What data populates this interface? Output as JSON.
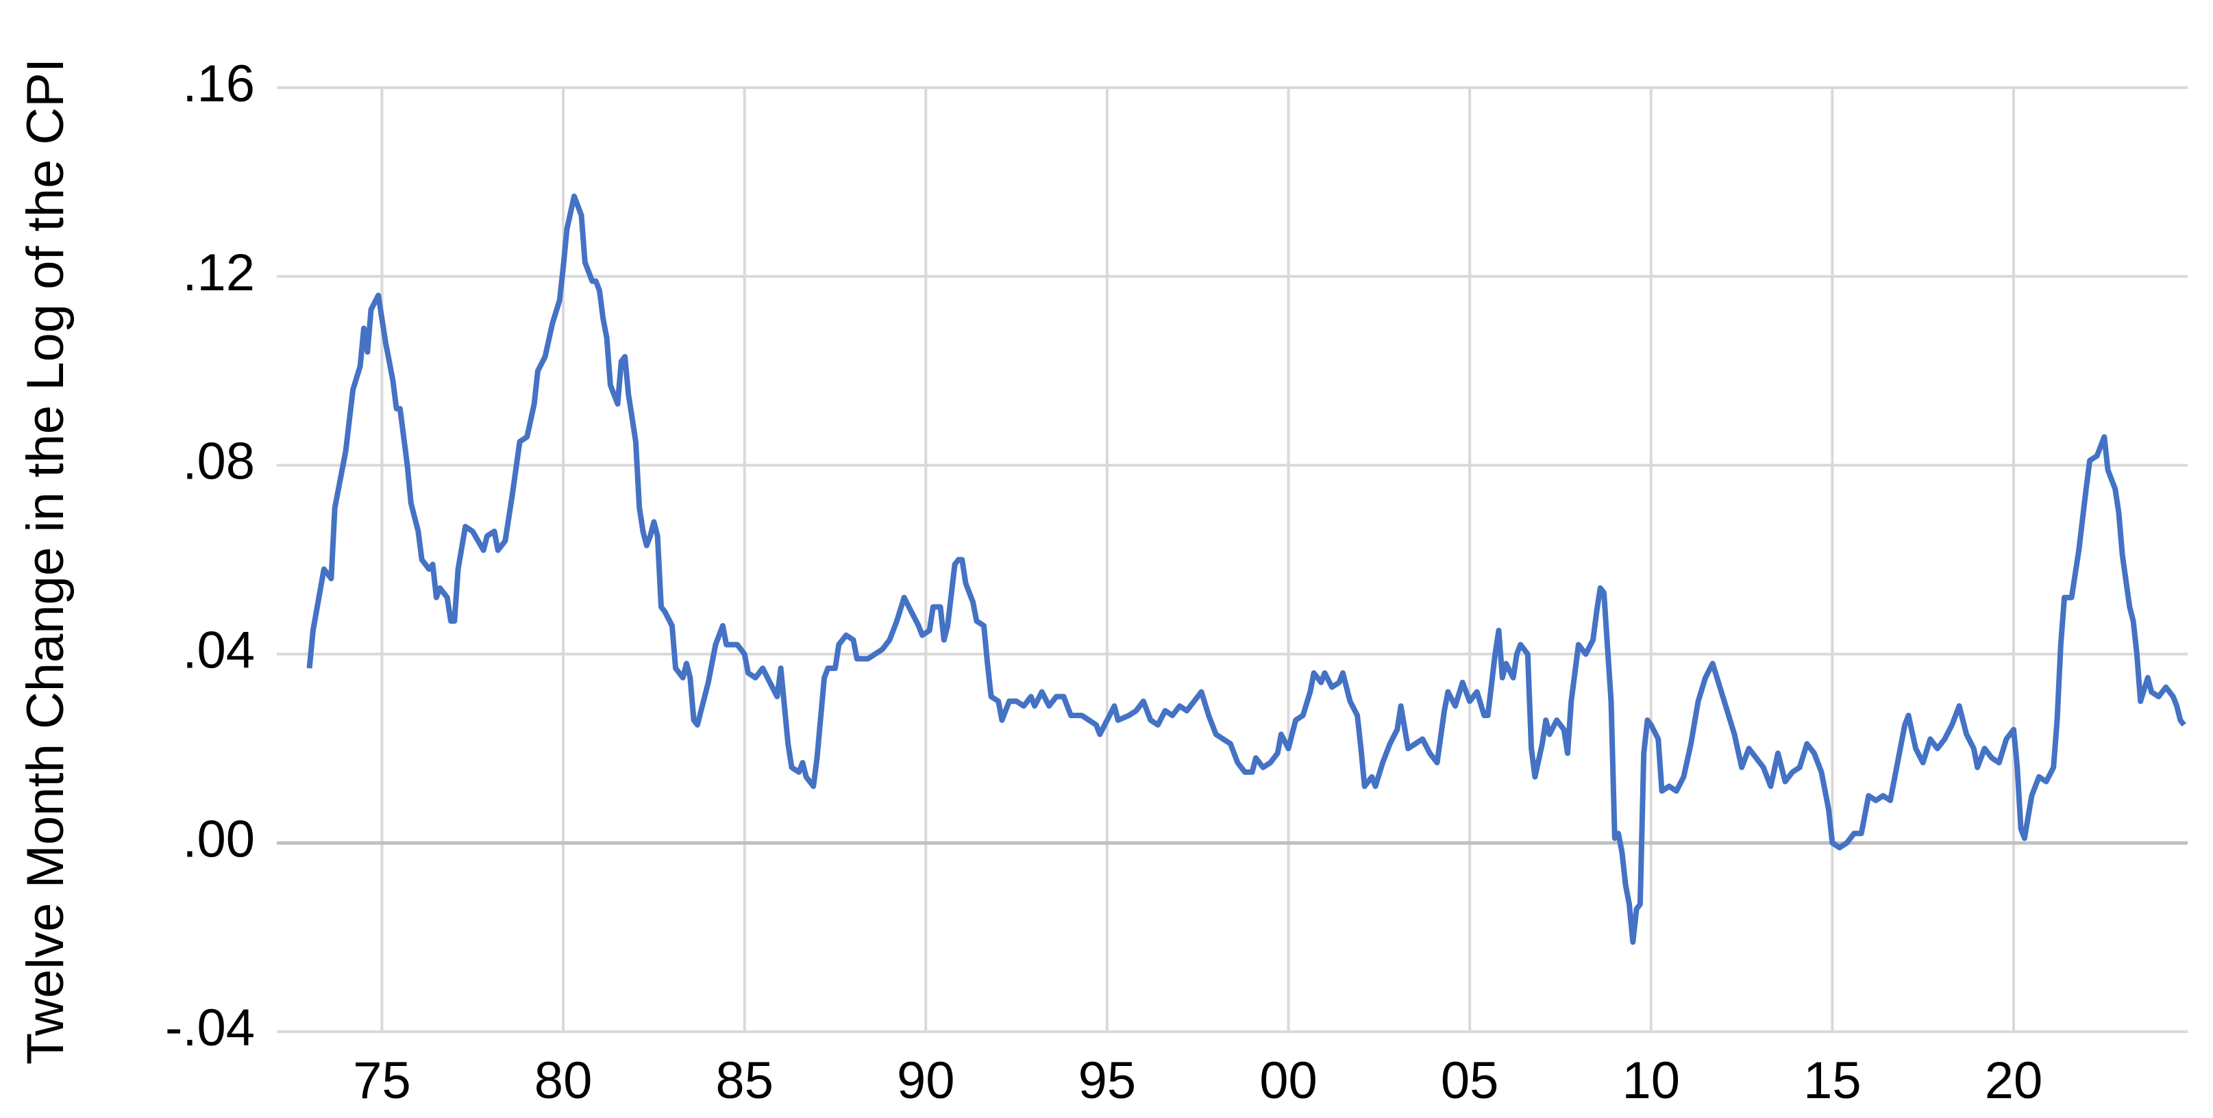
{
  "chart_data": {
    "type": "line",
    "y_label": "Twelve Month Change in the Log of the CPI",
    "color": "#4472c4",
    "grid": true,
    "xlim": [
      1972.1,
      2024.8
    ],
    "ylim": [
      -0.04,
      0.16
    ],
    "xticks": [
      {
        "value": 1975,
        "label": "75"
      },
      {
        "value": 1980,
        "label": "80"
      },
      {
        "value": 1985,
        "label": "85"
      },
      {
        "value": 1990,
        "label": "90"
      },
      {
        "value": 1995,
        "label": "95"
      },
      {
        "value": 2000,
        "label": "00"
      },
      {
        "value": 2005,
        "label": "05"
      },
      {
        "value": 2010,
        "label": "10"
      },
      {
        "value": 2015,
        "label": "15"
      },
      {
        "value": 2020,
        "label": "20"
      }
    ],
    "yticks": [
      {
        "value": -0.04,
        "label": "-.04"
      },
      {
        "value": 0,
        "label": ".00"
      },
      {
        "value": 0.04,
        "label": ".04"
      },
      {
        "value": 0.08,
        "label": ".08"
      },
      {
        "value": 0.12,
        "label": ".12"
      },
      {
        "value": 0.16,
        "label": ".16"
      }
    ],
    "x": [
      1973.0,
      1973.1,
      1973.4,
      1973.6,
      1973.7,
      1974.0,
      1974.2,
      1974.4,
      1974.5,
      1974.6,
      1974.7,
      1974.9,
      1975.1,
      1975.3,
      1975.4,
      1975.5,
      1975.7,
      1975.8,
      1976.0,
      1976.1,
      1976.3,
      1976.4,
      1976.5,
      1976.6,
      1976.8,
      1976.9,
      1977.0,
      1977.1,
      1977.3,
      1977.5,
      1977.8,
      1977.9,
      1978.1,
      1978.2,
      1978.4,
      1978.6,
      1978.8,
      1979.0,
      1979.2,
      1979.3,
      1979.5,
      1979.7,
      1979.9,
      1980.0,
      1980.1,
      1980.3,
      1980.5,
      1980.6,
      1980.8,
      1980.9,
      1981.0,
      1981.1,
      1981.2,
      1981.3,
      1981.5,
      1981.6,
      1981.7,
      1981.8,
      1982.0,
      1982.1,
      1982.2,
      1982.3,
      1982.4,
      1982.5,
      1982.6,
      1982.7,
      1982.8,
      1983.0,
      1983.1,
      1983.3,
      1983.4,
      1983.5,
      1983.6,
      1983.7,
      1983.8,
      1984.0,
      1984.2,
      1984.4,
      1984.5,
      1984.8,
      1985.0,
      1985.1,
      1985.3,
      1985.5,
      1985.7,
      1985.9,
      1986.0,
      1986.2,
      1986.3,
      1986.5,
      1986.6,
      1986.7,
      1986.9,
      1987.0,
      1987.2,
      1987.3,
      1987.5,
      1987.6,
      1987.8,
      1988.0,
      1988.1,
      1988.4,
      1988.6,
      1988.8,
      1989.0,
      1989.2,
      1989.4,
      1989.6,
      1989.8,
      1989.9,
      1990.1,
      1990.2,
      1990.4,
      1990.5,
      1990.6,
      1990.8,
      1990.9,
      1991.0,
      1991.1,
      1991.3,
      1991.4,
      1991.6,
      1991.7,
      1991.8,
      1992.0,
      1992.1,
      1992.3,
      1992.5,
      1992.7,
      1992.9,
      1993.0,
      1993.2,
      1993.4,
      1993.6,
      1993.8,
      1994.0,
      1994.3,
      1994.5,
      1994.7,
      1994.8,
      1995.0,
      1995.2,
      1995.3,
      1995.6,
      1995.8,
      1996.0,
      1996.2,
      1996.4,
      1996.6,
      1996.8,
      1997.0,
      1997.2,
      1997.4,
      1997.6,
      1997.8,
      1998.0,
      1998.2,
      1998.4,
      1998.6,
      1998.8,
      1999.0,
      1999.1,
      1999.3,
      1999.5,
      1999.7,
      1999.8,
      2000.0,
      2000.2,
      2000.4,
      2000.6,
      2000.7,
      2000.9,
      2001.0,
      2001.2,
      2001.4,
      2001.5,
      2001.7,
      2001.9,
      2002.0,
      2002.1,
      2002.3,
      2002.4,
      2002.6,
      2002.8,
      2003.0,
      2003.1,
      2003.3,
      2003.5,
      2003.7,
      2003.9,
      2004.1,
      2004.3,
      2004.4,
      2004.6,
      2004.8,
      2005.0,
      2005.2,
      2005.4,
      2005.5,
      2005.7,
      2005.8,
      2005.9,
      2006.0,
      2006.2,
      2006.3,
      2006.4,
      2006.6,
      2006.7,
      2006.8,
      2007.0,
      2007.1,
      2007.2,
      2007.4,
      2007.6,
      2007.7,
      2007.8,
      2008.0,
      2008.2,
      2008.4,
      2008.5,
      2008.6,
      2008.7,
      2008.9,
      2009.0,
      2009.1,
      2009.2,
      2009.3,
      2009.4,
      2009.5,
      2009.6,
      2009.7,
      2009.8,
      2009.9,
      2010.0,
      2010.2,
      2010.3,
      2010.5,
      2010.7,
      2010.9,
      2011.1,
      2011.3,
      2011.5,
      2011.7,
      2011.9,
      2012.1,
      2012.3,
      2012.5,
      2012.7,
      2012.9,
      2013.1,
      2013.3,
      2013.5,
      2013.7,
      2013.9,
      2014.1,
      2014.3,
      2014.5,
      2014.7,
      2014.9,
      2015.0,
      2015.2,
      2015.4,
      2015.6,
      2015.8,
      2016.0,
      2016.2,
      2016.4,
      2016.6,
      2016.8,
      2017.0,
      2017.1,
      2017.3,
      2017.5,
      2017.7,
      2017.9,
      2018.1,
      2018.3,
      2018.5,
      2018.7,
      2018.9,
      2019.0,
      2019.2,
      2019.4,
      2019.6,
      2019.8,
      2020.0,
      2020.1,
      2020.2,
      2020.3,
      2020.5,
      2020.7,
      2020.9,
      2021.1,
      2021.2,
      2021.3,
      2021.4,
      2021.6,
      2021.8,
      2022.0,
      2022.1,
      2022.3,
      2022.5,
      2022.6,
      2022.8,
      2022.9,
      2023.0,
      2023.2,
      2023.3,
      2023.4,
      2023.5,
      2023.7,
      2023.8,
      2024.0,
      2024.2,
      2024.4,
      2024.5,
      2024.6,
      2024.7
    ],
    "values": [
      0.037,
      0.045,
      0.058,
      0.056,
      0.071,
      0.083,
      0.096,
      0.101,
      0.109,
      0.104,
      0.113,
      0.116,
      0.106,
      0.098,
      0.092,
      0.092,
      0.08,
      0.072,
      0.066,
      0.06,
      0.058,
      0.059,
      0.052,
      0.054,
      0.052,
      0.047,
      0.047,
      0.058,
      0.067,
      0.066,
      0.062,
      0.065,
      0.066,
      0.062,
      0.064,
      0.074,
      0.085,
      0.086,
      0.093,
      0.1,
      0.103,
      0.11,
      0.115,
      0.122,
      0.13,
      0.137,
      0.133,
      0.123,
      0.119,
      0.119,
      0.117,
      0.111,
      0.107,
      0.097,
      0.093,
      0.102,
      0.103,
      0.095,
      0.085,
      0.071,
      0.066,
      0.063,
      0.065,
      0.068,
      0.065,
      0.05,
      0.049,
      0.046,
      0.037,
      0.035,
      0.038,
      0.035,
      0.026,
      0.025,
      0.028,
      0.034,
      0.042,
      0.046,
      0.042,
      0.042,
      0.04,
      0.036,
      0.035,
      0.037,
      0.034,
      0.031,
      0.037,
      0.021,
      0.016,
      0.015,
      0.017,
      0.014,
      0.012,
      0.018,
      0.035,
      0.037,
      0.037,
      0.042,
      0.044,
      0.043,
      0.039,
      0.039,
      0.04,
      0.041,
      0.043,
      0.047,
      0.052,
      0.049,
      0.046,
      0.044,
      0.045,
      0.05,
      0.05,
      0.043,
      0.046,
      0.059,
      0.06,
      0.06,
      0.055,
      0.051,
      0.047,
      0.046,
      0.038,
      0.031,
      0.03,
      0.026,
      0.03,
      0.03,
      0.029,
      0.031,
      0.029,
      0.032,
      0.029,
      0.031,
      0.031,
      0.027,
      0.027,
      0.026,
      0.025,
      0.023,
      0.026,
      0.029,
      0.026,
      0.027,
      0.028,
      0.03,
      0.026,
      0.025,
      0.028,
      0.027,
      0.029,
      0.028,
      0.03,
      0.032,
      0.027,
      0.023,
      0.022,
      0.021,
      0.017,
      0.015,
      0.015,
      0.018,
      0.016,
      0.017,
      0.019,
      0.023,
      0.02,
      0.026,
      0.027,
      0.032,
      0.036,
      0.034,
      0.036,
      0.033,
      0.034,
      0.036,
      0.03,
      0.027,
      0.02,
      0.012,
      0.014,
      0.012,
      0.017,
      0.021,
      0.024,
      0.029,
      0.02,
      0.021,
      0.022,
      0.019,
      0.017,
      0.028,
      0.032,
      0.029,
      0.034,
      0.03,
      0.032,
      0.027,
      0.027,
      0.04,
      0.045,
      0.035,
      0.038,
      0.035,
      0.04,
      0.042,
      0.04,
      0.02,
      0.014,
      0.021,
      0.026,
      0.023,
      0.026,
      0.024,
      0.019,
      0.03,
      0.042,
      0.04,
      0.043,
      0.049,
      0.054,
      0.053,
      0.03,
      0.001,
      0.002,
      -0.002,
      -0.009,
      -0.013,
      -0.021,
      -0.014,
      -0.013,
      0.019,
      0.026,
      0.025,
      0.022,
      0.011,
      0.012,
      0.011,
      0.014,
      0.021,
      0.03,
      0.035,
      0.038,
      0.033,
      0.028,
      0.023,
      0.016,
      0.02,
      0.018,
      0.016,
      0.012,
      0.019,
      0.013,
      0.015,
      0.016,
      0.021,
      0.019,
      0.015,
      0.007,
      0.0,
      -0.001,
      0.0,
      0.002,
      0.002,
      0.01,
      0.009,
      0.01,
      0.009,
      0.017,
      0.025,
      0.027,
      0.02,
      0.017,
      0.022,
      0.02,
      0.022,
      0.025,
      0.029,
      0.023,
      0.02,
      0.016,
      0.02,
      0.018,
      0.017,
      0.022,
      0.024,
      0.016,
      0.003,
      0.001,
      0.01,
      0.014,
      0.013,
      0.016,
      0.026,
      0.042,
      0.052,
      0.052,
      0.062,
      0.075,
      0.081,
      0.082,
      0.086,
      0.079,
      0.075,
      0.07,
      0.061,
      0.05,
      0.047,
      0.04,
      0.03,
      0.035,
      0.032,
      0.031,
      0.033,
      0.031,
      0.029,
      0.026,
      0.025
    ]
  }
}
